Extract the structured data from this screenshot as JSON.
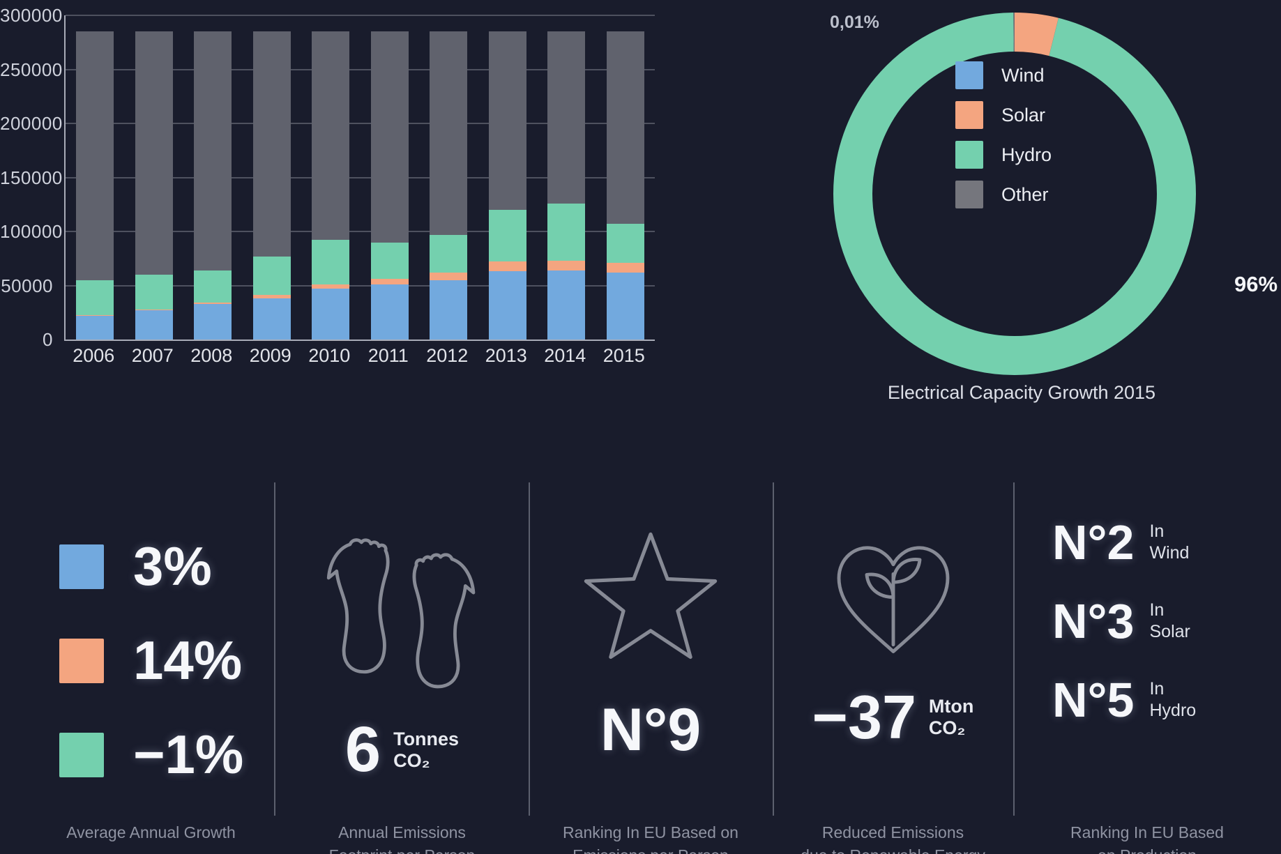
{
  "colors": {
    "background": "#191c2c",
    "wind": "#72a9de",
    "solar": "#f4a580",
    "hydro": "#74d0ae",
    "other_bar": "#60626d",
    "other_legend": "#75767d"
  },
  "chart_data": [
    {
      "type": "bar",
      "stacked": true,
      "title": "",
      "xlabel": "",
      "ylabel": "",
      "categories": [
        "2006",
        "2007",
        "2008",
        "2009",
        "2010",
        "2011",
        "2012",
        "2013",
        "2014",
        "2015"
      ],
      "series": [
        {
          "name": "Wind",
          "color": "#72a9de",
          "values": [
            22000,
            27000,
            33000,
            38000,
            47000,
            51000,
            55000,
            63000,
            64000,
            62000
          ]
        },
        {
          "name": "Solar",
          "color": "#f4a580",
          "values": [
            500,
            800,
            1500,
            3000,
            4000,
            5000,
            7000,
            9000,
            9000,
            9000
          ]
        },
        {
          "name": "Hydro",
          "color": "#74d0ae",
          "values": [
            32500,
            32200,
            29500,
            36000,
            41000,
            34000,
            35000,
            48000,
            53000,
            36000
          ]
        },
        {
          "name": "Other",
          "color": "#60626d",
          "values": [
            230000,
            225000,
            221000,
            208000,
            193000,
            195000,
            188000,
            165000,
            159000,
            178000
          ]
        }
      ],
      "ylim": [
        0,
        300000
      ],
      "yticks": [
        0,
        50000,
        100000,
        150000,
        200000,
        250000,
        300000
      ],
      "grid": true,
      "legend_position": "none"
    },
    {
      "type": "pie",
      "title": "Electrical Capacity Growth 2015",
      "slices": [
        {
          "label": "Wind",
          "color": "#72a9de",
          "value": 0.01
        },
        {
          "label": "Solar",
          "color": "#f4a580",
          "value": 3.9
        },
        {
          "label": "Hydro",
          "color": "#74d0ae",
          "value": 96
        },
        {
          "label": "Other",
          "color": "#75767d",
          "value": 0.09
        }
      ],
      "visible_labels": [
        "0,01%",
        "96%"
      ],
      "legend_position": "center-right",
      "donut": true
    }
  ],
  "stats": {
    "growth": {
      "items": [
        {
          "value": "3%",
          "color": "#72a9de"
        },
        {
          "value": "14%",
          "color": "#f4a580"
        },
        {
          "value": "−1%",
          "color": "#74d0ae"
        }
      ],
      "caption_line1": "Average Annual Growth",
      "caption_line2": ""
    },
    "footprint": {
      "value": "6",
      "unit_line1": "Tonnes",
      "unit_line2": "CO₂",
      "caption_line1": "Annual Emissions",
      "caption_line2": "Footprint per Person"
    },
    "eu_rank_emissions": {
      "value": "N°9",
      "caption_line1": "Ranking In EU Based on",
      "caption_line2": "Emissions per Person"
    },
    "reduced_emissions": {
      "value": "−37",
      "unit_line1": "Mton",
      "unit_line2": "CO₂",
      "caption_line1": "Reduced Emissions",
      "caption_line2": "due to Renewable Energy"
    },
    "production_rank": {
      "items": [
        {
          "rank": "N°2",
          "prefix": "In",
          "label": "Wind"
        },
        {
          "rank": "N°3",
          "prefix": "In",
          "label": "Solar"
        },
        {
          "rank": "N°5",
          "prefix": "In",
          "label": "Hydro"
        }
      ],
      "caption_line1": "Ranking In EU Based",
      "caption_line2": "on Production"
    }
  }
}
